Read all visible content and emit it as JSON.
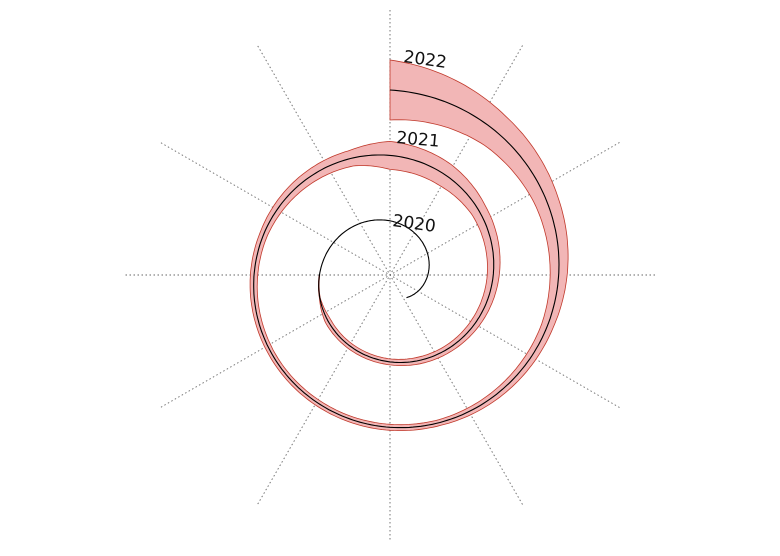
{
  "chart_data": {
    "type": "line",
    "subtype": "spiral",
    "title": "",
    "xlabel": "",
    "ylabel": "",
    "grid": true,
    "radial_gridlines": 12,
    "start_year": 2019.6,
    "end_year": 2022.0,
    "year_labels": [
      "2020",
      "2021",
      "2022"
    ],
    "band_color": "#f2b6b6",
    "band_edge_color": "#c0392b",
    "line_color": "#000000",
    "band_half_width": [
      [
        2019.6,
        0
      ],
      [
        2020.0,
        0
      ],
      [
        2020.3,
        0.4
      ],
      [
        2020.35,
        3
      ],
      [
        2020.5,
        3
      ],
      [
        2020.62,
        4
      ],
      [
        2020.75,
        6
      ],
      [
        2020.85,
        8
      ],
      [
        2020.92,
        12
      ],
      [
        2021.0,
        14
      ],
      [
        2021.05,
        8
      ],
      [
        2021.2,
        4
      ],
      [
        2021.35,
        3
      ],
      [
        2021.55,
        3
      ],
      [
        2021.7,
        6
      ],
      [
        2021.82,
        12
      ],
      [
        2021.9,
        18
      ],
      [
        2022.0,
        30
      ]
    ]
  }
}
